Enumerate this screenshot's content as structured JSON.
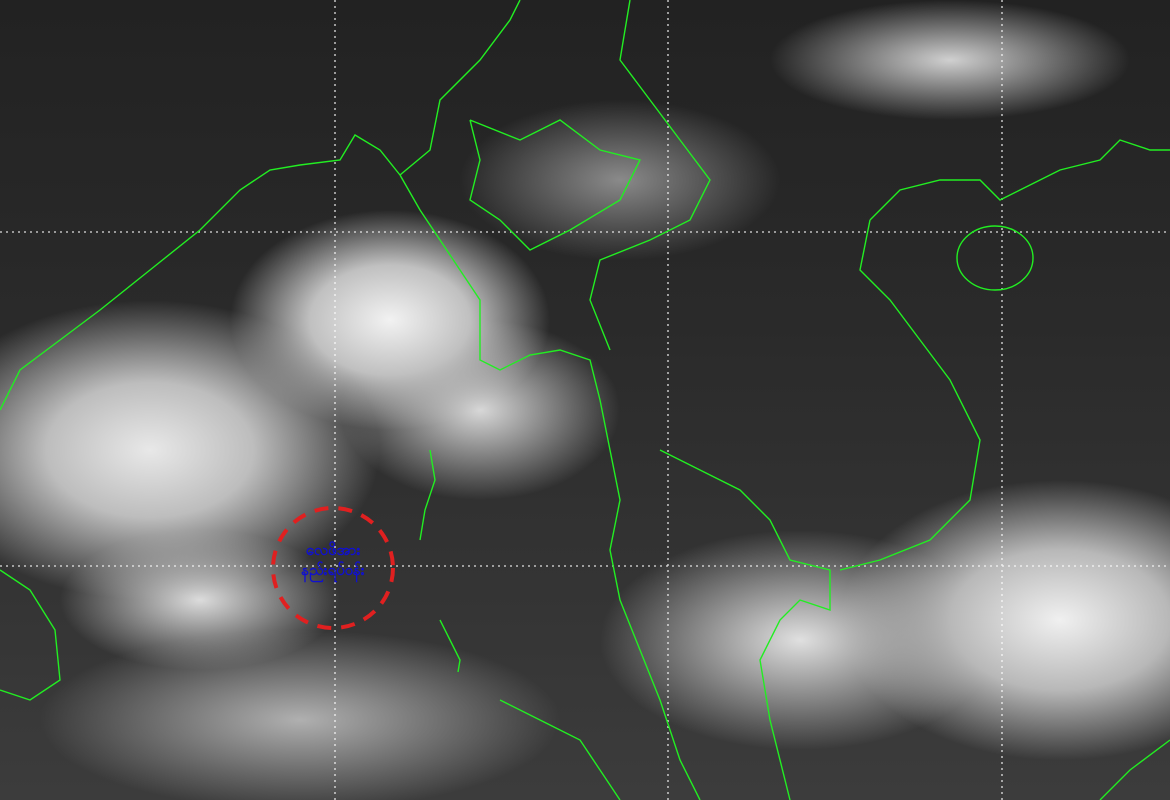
{
  "annotation": {
    "line1": "လေဖိအား",
    "line2": "နည်းရပ်ဝန်း",
    "text_color": "#1010d0",
    "circle_color": "#e02020"
  },
  "colors": {
    "borders": "#22ee22",
    "grid": "#ffffff"
  }
}
